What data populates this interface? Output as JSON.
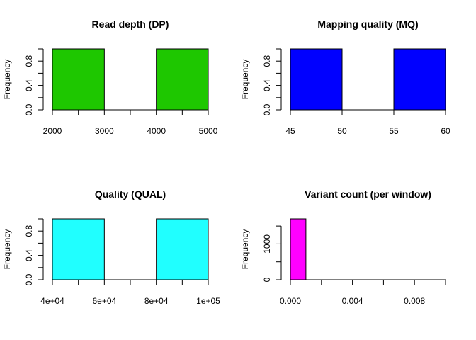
{
  "chart_data": [
    {
      "type": "bar",
      "title": "Read depth (DP)",
      "ylabel": "Frequency",
      "color": "#1ec700",
      "bins": [
        [
          2000,
          3000
        ],
        [
          3000,
          4000
        ],
        [
          4000,
          5000
        ]
      ],
      "values": [
        1,
        0,
        1
      ],
      "xlim": [
        2000,
        5000
      ],
      "ylim": [
        0,
        1
      ],
      "x_ticks": [
        2000,
        2500,
        3000,
        3500,
        4000,
        4500,
        5000
      ],
      "x_tick_labels": [
        {
          "value": 2000,
          "label": "2000"
        },
        {
          "value": 3000,
          "label": "3000"
        },
        {
          "value": 4000,
          "label": "4000"
        },
        {
          "value": 5000,
          "label": "5000"
        }
      ],
      "y_ticks": [
        0,
        0.2,
        0.4,
        0.6,
        0.8,
        1.0
      ],
      "y_tick_labels": [
        {
          "value": 0,
          "label": "0.0"
        },
        {
          "value": 0.4,
          "label": "0.4"
        },
        {
          "value": 0.8,
          "label": "0.8"
        }
      ]
    },
    {
      "type": "bar",
      "title": "Mapping quality (MQ)",
      "ylabel": "Frequency",
      "color": "#0000ff",
      "bins": [
        [
          45,
          50
        ],
        [
          50,
          55
        ],
        [
          55,
          60
        ]
      ],
      "values": [
        1,
        0,
        1
      ],
      "xlim": [
        45,
        60
      ],
      "ylim": [
        0,
        1
      ],
      "x_ticks": [
        45,
        50,
        55,
        60
      ],
      "x_tick_labels": [
        {
          "value": 45,
          "label": "45"
        },
        {
          "value": 50,
          "label": "50"
        },
        {
          "value": 55,
          "label": "55"
        },
        {
          "value": 60,
          "label": "60"
        }
      ],
      "y_ticks": [
        0,
        0.2,
        0.4,
        0.6,
        0.8,
        1.0
      ],
      "y_tick_labels": [
        {
          "value": 0,
          "label": "0.0"
        },
        {
          "value": 0.4,
          "label": "0.4"
        },
        {
          "value": 0.8,
          "label": "0.8"
        }
      ]
    },
    {
      "type": "bar",
      "title": "Quality (QUAL)",
      "ylabel": "Frequency",
      "color": "#20ffff",
      "bins": [
        [
          40000,
          60000
        ],
        [
          60000,
          80000
        ],
        [
          80000,
          100000
        ]
      ],
      "values": [
        1,
        0,
        1
      ],
      "xlim": [
        40000,
        100000
      ],
      "ylim": [
        0,
        1
      ],
      "x_ticks": [
        40000,
        50000,
        60000,
        70000,
        80000,
        90000,
        100000
      ],
      "x_tick_labels": [
        {
          "value": 40000,
          "label": "4e+04"
        },
        {
          "value": 60000,
          "label": "6e+04"
        },
        {
          "value": 80000,
          "label": "8e+04"
        },
        {
          "value": 100000,
          "label": "1e+05"
        }
      ],
      "y_ticks": [
        0,
        0.2,
        0.4,
        0.6,
        0.8,
        1.0
      ],
      "y_tick_labels": [
        {
          "value": 0,
          "label": "0.0"
        },
        {
          "value": 0.4,
          "label": "0.4"
        },
        {
          "value": 0.8,
          "label": "0.8"
        }
      ]
    },
    {
      "type": "bar",
      "title": "Variant count (per window)",
      "ylabel": "Frequency",
      "color": "#ff00ff",
      "bins": [
        [
          0,
          0.001
        ],
        [
          0.001,
          0.002
        ],
        [
          0.002,
          0.003
        ],
        [
          0.003,
          0.004
        ],
        [
          0.004,
          0.005
        ],
        [
          0.005,
          0.006
        ],
        [
          0.006,
          0.007
        ],
        [
          0.007,
          0.008
        ],
        [
          0.008,
          0.009
        ],
        [
          0.009,
          0.01
        ]
      ],
      "values": [
        1700,
        0,
        0,
        0,
        0,
        0,
        0,
        0,
        0,
        0
      ],
      "xlim": [
        0,
        0.01
      ],
      "ylim": [
        0,
        1700
      ],
      "x_ticks": [
        0,
        0.002,
        0.004,
        0.006,
        0.008,
        0.01
      ],
      "x_tick_labels": [
        {
          "value": 0,
          "label": "0.000"
        },
        {
          "value": 0.004,
          "label": "0.004"
        },
        {
          "value": 0.008,
          "label": "0.008"
        }
      ],
      "y_ticks": [
        0,
        500,
        1000,
        1500
      ],
      "y_tick_labels": [
        {
          "value": 0,
          "label": "0"
        },
        {
          "value": 1000,
          "label": "1000"
        }
      ]
    }
  ]
}
